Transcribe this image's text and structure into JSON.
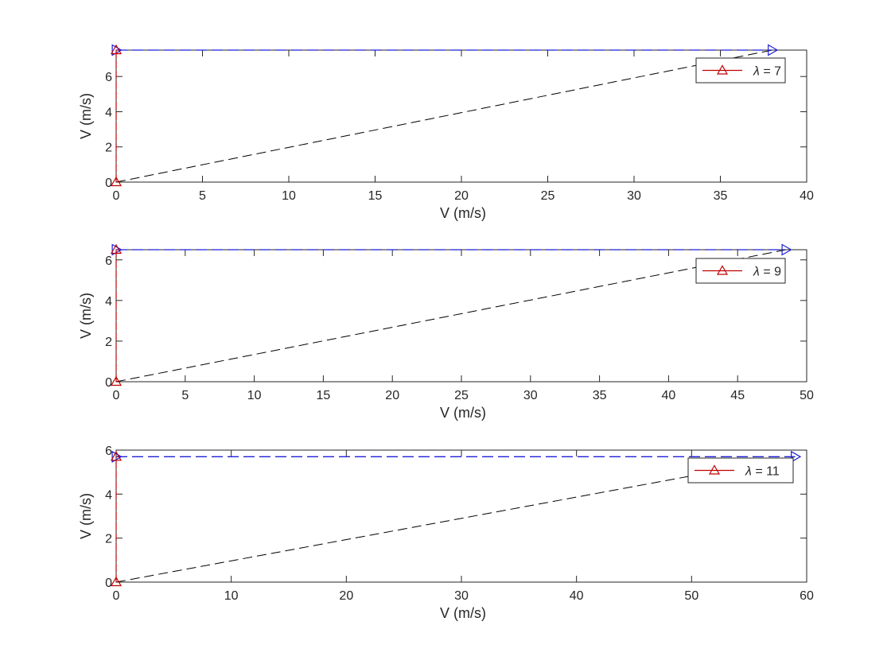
{
  "chart_data": [
    {
      "type": "line",
      "xlabel": "V (m/s)",
      "ylabel": "V (m/s)",
      "xlim": [
        0,
        40
      ],
      "ylim": [
        0,
        7.5
      ],
      "xticks": [
        "0",
        "5",
        "10",
        "15",
        "20",
        "25",
        "30",
        "35",
        "40"
      ],
      "yticks": [
        "0",
        "2",
        "4",
        "6"
      ],
      "grid": false,
      "legend": {
        "position": "top-right",
        "entries": [
          {
            "symbol": "λ",
            "text": " = 7"
          }
        ]
      },
      "series": [
        {
          "style": "red solid with triangle markers",
          "color": "#c00000",
          "x": [
            0,
            0
          ],
          "y": [
            0,
            7.5
          ]
        },
        {
          "style": "black dashed",
          "color": "#000000",
          "x": [
            0,
            38
          ],
          "y": [
            0,
            7.5
          ]
        },
        {
          "style": "blue dashed with right-triangle markers",
          "color": "#1f1fd6",
          "x": [
            0,
            38
          ],
          "y": [
            7.5,
            7.5
          ]
        }
      ]
    },
    {
      "type": "line",
      "xlabel": "V (m/s)",
      "ylabel": "V (m/s)",
      "xlim": [
        0,
        50
      ],
      "ylim": [
        0,
        6.5
      ],
      "xticks": [
        "0",
        "5",
        "10",
        "15",
        "20",
        "25",
        "30",
        "35",
        "40",
        "45",
        "50"
      ],
      "yticks": [
        "0",
        "2",
        "4",
        "6"
      ],
      "grid": false,
      "legend": {
        "position": "top-right",
        "entries": [
          {
            "symbol": "λ",
            "text": " = 9"
          }
        ]
      },
      "series": [
        {
          "style": "red solid with triangle markers",
          "color": "#c00000",
          "x": [
            0,
            0
          ],
          "y": [
            0,
            6.5
          ]
        },
        {
          "style": "black dashed",
          "color": "#000000",
          "x": [
            0,
            48.5
          ],
          "y": [
            0,
            6.5
          ]
        },
        {
          "style": "blue dashed with right-triangle markers",
          "color": "#1f1fd6",
          "x": [
            0,
            48.5
          ],
          "y": [
            6.5,
            6.5
          ]
        }
      ]
    },
    {
      "type": "line",
      "xlabel": "V (m/s)",
      "ylabel": "V (m/s)",
      "xlim": [
        0,
        60
      ],
      "ylim": [
        0,
        6
      ],
      "xticks": [
        "0",
        "10",
        "20",
        "30",
        "40",
        "50",
        "60"
      ],
      "yticks": [
        "0",
        "2",
        "4",
        "6"
      ],
      "grid": false,
      "legend": {
        "position": "top-right",
        "entries": [
          {
            "symbol": "λ",
            "text": " = 11"
          }
        ]
      },
      "series": [
        {
          "style": "red solid with triangle markers",
          "color": "#c00000",
          "x": [
            0,
            0
          ],
          "y": [
            0,
            5.7
          ]
        },
        {
          "style": "black dashed",
          "color": "#000000",
          "x": [
            0,
            59
          ],
          "y": [
            0,
            5.7
          ]
        },
        {
          "style": "blue dashed with right-triangle markers",
          "color": "#1f1fd6",
          "x": [
            0,
            59
          ],
          "y": [
            5.7,
            5.7
          ]
        }
      ]
    }
  ]
}
